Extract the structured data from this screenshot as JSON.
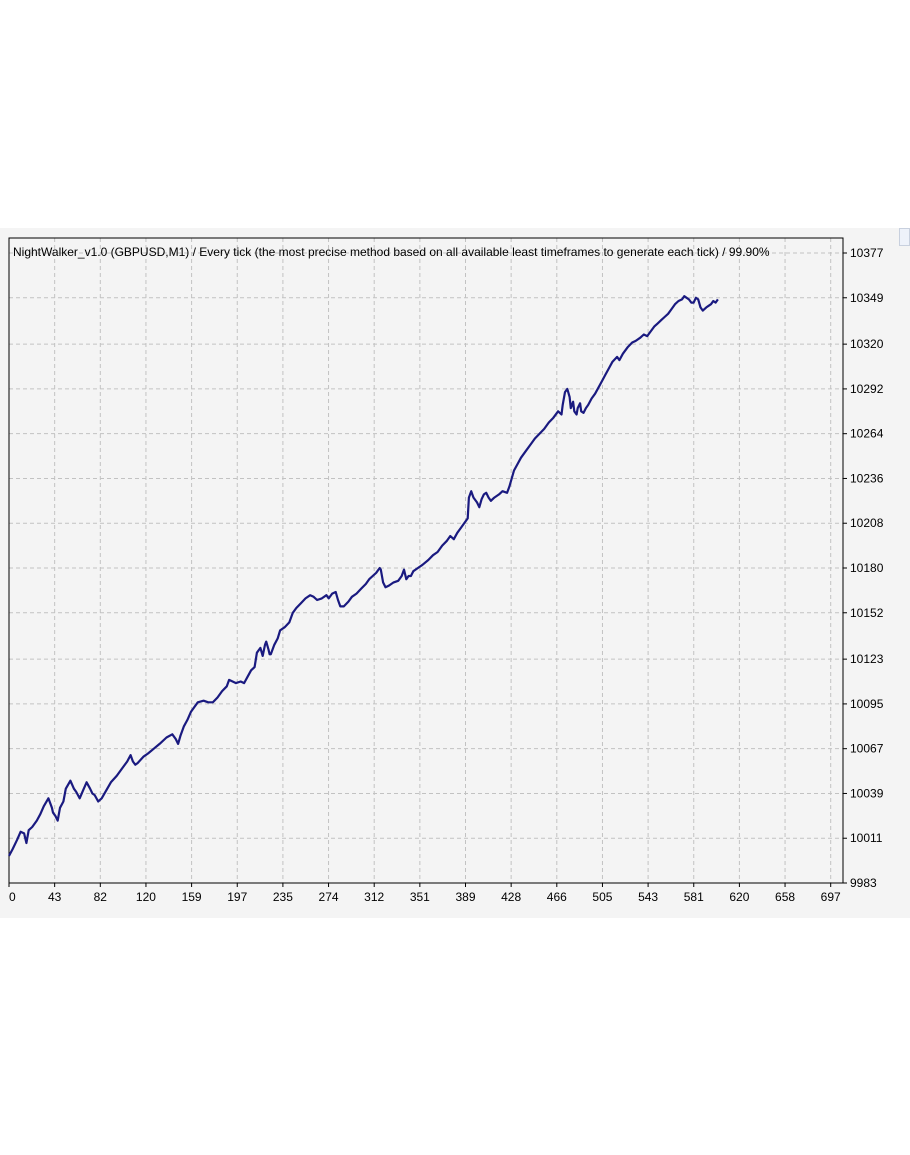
{
  "chart_data": {
    "type": "line",
    "title": "NightWalker_v1.0 (GBPUSD,M1) / Every tick (the most precise method based on all available least timeframes to generate each tick) / 99.90%",
    "xlabel": "",
    "ylabel": "",
    "xlim": [
      0,
      720
    ],
    "ylim": [
      9983,
      10377
    ],
    "x_ticks": [
      0,
      43,
      82,
      120,
      159,
      197,
      235,
      274,
      312,
      351,
      389,
      428,
      466,
      505,
      543,
      581,
      620,
      658,
      697
    ],
    "y_ticks": [
      10377,
      10349,
      10320,
      10292,
      10264,
      10236,
      10208,
      10180,
      10152,
      10123,
      10095,
      10067,
      10039,
      10011,
      9983
    ],
    "grid": true,
    "legend": "none",
    "line_color": "#1a1a80",
    "series": [
      {
        "values": [
          [
            0,
            10000
          ],
          [
            3,
            10004
          ],
          [
            7,
            10010
          ],
          [
            10,
            10015
          ],
          [
            13,
            10014
          ],
          [
            15,
            10008
          ],
          [
            17,
            10016
          ],
          [
            20,
            10018
          ],
          [
            24,
            10022
          ],
          [
            27,
            10026
          ],
          [
            30,
            10031
          ],
          [
            34,
            10036
          ],
          [
            37,
            10030
          ],
          [
            38,
            10027
          ],
          [
            40,
            10025
          ],
          [
            42,
            10022
          ],
          [
            44,
            10030
          ],
          [
            47,
            10034
          ],
          [
            49,
            10042
          ],
          [
            53,
            10047
          ],
          [
            56,
            10042
          ],
          [
            58,
            10040
          ],
          [
            61,
            10036
          ],
          [
            64,
            10041
          ],
          [
            67,
            10046
          ],
          [
            70,
            10042
          ],
          [
            72,
            10039
          ],
          [
            74,
            10038
          ],
          [
            77,
            10034
          ],
          [
            80,
            10036
          ],
          [
            84,
            10041
          ],
          [
            88,
            10046
          ],
          [
            93,
            10050
          ],
          [
            98,
            10055
          ],
          [
            102,
            10059
          ],
          [
            105,
            10063
          ],
          [
            107,
            10059
          ],
          [
            109,
            10057
          ],
          [
            111,
            10058
          ],
          [
            116,
            10062
          ],
          [
            120,
            10064
          ],
          [
            125,
            10067
          ],
          [
            130,
            10070
          ],
          [
            136,
            10074
          ],
          [
            141,
            10076
          ],
          [
            144,
            10073
          ],
          [
            146,
            10070
          ],
          [
            148,
            10075
          ],
          [
            151,
            10081
          ],
          [
            154,
            10085
          ],
          [
            157,
            10090
          ],
          [
            160,
            10093
          ],
          [
            163,
            10096
          ],
          [
            168,
            10097
          ],
          [
            172,
            10096
          ],
          [
            176,
            10096
          ],
          [
            180,
            10099
          ],
          [
            184,
            10103
          ],
          [
            188,
            10106
          ],
          [
            190,
            10110
          ],
          [
            193,
            10109
          ],
          [
            196,
            10108
          ],
          [
            200,
            10109
          ],
          [
            203,
            10108
          ],
          [
            206,
            10112
          ],
          [
            209,
            10116
          ],
          [
            212,
            10118
          ],
          [
            214,
            10127
          ],
          [
            217,
            10130
          ],
          [
            219,
            10125
          ],
          [
            221,
            10132
          ],
          [
            222,
            10134
          ],
          [
            224,
            10129
          ],
          [
            225,
            10126
          ],
          [
            226,
            10126
          ],
          [
            229,
            10132
          ],
          [
            232,
            10136
          ],
          [
            234,
            10141
          ],
          [
            238,
            10143
          ],
          [
            242,
            10146
          ],
          [
            245,
            10152
          ],
          [
            248,
            10155
          ],
          [
            252,
            10158
          ],
          [
            256,
            10161
          ],
          [
            260,
            10163
          ],
          [
            263,
            10162
          ],
          [
            266,
            10160
          ],
          [
            270,
            10161
          ],
          [
            274,
            10163
          ],
          [
            276,
            10161
          ],
          [
            279,
            10164
          ],
          [
            282,
            10165
          ],
          [
            284,
            10160
          ],
          [
            286,
            10156
          ],
          [
            289,
            10156
          ],
          [
            293,
            10159
          ],
          [
            296,
            10162
          ],
          [
            300,
            10164
          ],
          [
            304,
            10167
          ],
          [
            308,
            10170
          ],
          [
            311,
            10173
          ],
          [
            314,
            10175
          ],
          [
            317,
            10177
          ],
          [
            319,
            10179
          ],
          [
            320,
            10180
          ],
          [
            321,
            10179
          ],
          [
            323,
            10171
          ],
          [
            325,
            10168
          ],
          [
            328,
            10169
          ],
          [
            332,
            10171
          ],
          [
            336,
            10172
          ],
          [
            339,
            10175
          ],
          [
            341,
            10179
          ],
          [
            343,
            10173
          ],
          [
            345,
            10175
          ],
          [
            347,
            10175
          ],
          [
            349,
            10178
          ],
          [
            353,
            10180
          ],
          [
            357,
            10182
          ],
          [
            362,
            10185
          ],
          [
            366,
            10188
          ],
          [
            370,
            10190
          ],
          [
            374,
            10194
          ],
          [
            378,
            10197
          ],
          [
            381,
            10200
          ],
          [
            384,
            10198
          ],
          [
            387,
            10202
          ],
          [
            390,
            10205
          ],
          [
            393,
            10208
          ],
          [
            396,
            10211
          ],
          [
            397,
            10224
          ],
          [
            399,
            10228
          ],
          [
            401,
            10224
          ],
          [
            404,
            10221
          ],
          [
            406,
            10218
          ],
          [
            408,
            10223
          ],
          [
            410,
            10226
          ],
          [
            412,
            10227
          ],
          [
            414,
            10224
          ],
          [
            416,
            10222
          ],
          [
            419,
            10224
          ],
          [
            423,
            10226
          ],
          [
            426,
            10228
          ],
          [
            430,
            10227
          ],
          [
            432,
            10231
          ],
          [
            434,
            10236
          ],
          [
            436,
            10241
          ],
          [
            439,
            10245
          ],
          [
            442,
            10249
          ],
          [
            446,
            10253
          ],
          [
            450,
            10257
          ],
          [
            454,
            10261
          ],
          [
            458,
            10264
          ],
          [
            462,
            10267
          ],
          [
            466,
            10271
          ],
          [
            470,
            10274
          ],
          [
            474,
            10278
          ],
          [
            477,
            10276
          ],
          [
            478,
            10282
          ],
          [
            480,
            10290
          ],
          [
            482,
            10292
          ],
          [
            484,
            10287
          ],
          [
            485,
            10280
          ],
          [
            487,
            10284
          ],
          [
            488,
            10278
          ],
          [
            490,
            10276
          ],
          [
            491,
            10280
          ],
          [
            493,
            10283
          ],
          [
            494,
            10278
          ],
          [
            496,
            10277
          ],
          [
            498,
            10280
          ],
          [
            500,
            10282
          ],
          [
            503,
            10286
          ],
          [
            506,
            10289
          ],
          [
            509,
            10293
          ],
          [
            512,
            10297
          ],
          [
            515,
            10301
          ],
          [
            518,
            10305
          ],
          [
            521,
            10309
          ],
          [
            525,
            10312
          ],
          [
            527,
            10310
          ],
          [
            530,
            10314
          ],
          [
            534,
            10318
          ],
          [
            538,
            10321
          ],
          [
            541,
            10322
          ],
          [
            545,
            10324
          ],
          [
            548,
            10326
          ],
          [
            551,
            10325
          ],
          [
            554,
            10328
          ],
          [
            557,
            10331
          ],
          [
            560,
            10333
          ],
          [
            563,
            10335
          ],
          [
            566,
            10337
          ],
          [
            569,
            10339
          ],
          [
            572,
            10342
          ],
          [
            575,
            10345
          ],
          [
            578,
            10347
          ],
          [
            581,
            10348
          ],
          [
            583,
            10350
          ],
          [
            585,
            10349
          ],
          [
            587,
            10348
          ],
          [
            589,
            10346
          ],
          [
            591,
            10346
          ],
          [
            593,
            10349
          ],
          [
            595,
            10348
          ],
          [
            597,
            10343
          ],
          [
            599,
            10341
          ],
          [
            602,
            10343
          ],
          [
            604,
            10344
          ],
          [
            606,
            10345
          ],
          [
            608,
            10347
          ],
          [
            610,
            10346
          ],
          [
            612,
            10348
          ]
        ]
      }
    ]
  }
}
